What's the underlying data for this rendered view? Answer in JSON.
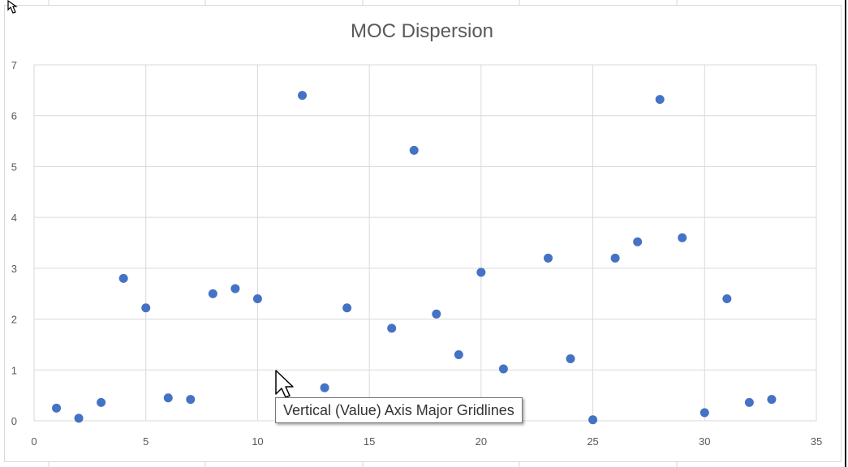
{
  "chart_data": {
    "type": "scatter",
    "title": "MOC Dispersion",
    "xlabel": "",
    "ylabel": "",
    "xlim": [
      0,
      35
    ],
    "ylim": [
      0,
      7
    ],
    "x_ticks": [
      0,
      5,
      10,
      15,
      20,
      25,
      30,
      35
    ],
    "y_ticks": [
      0,
      1,
      2,
      3,
      4,
      5,
      6,
      7
    ],
    "grid": true,
    "legend": "none",
    "marker_color": "#4472c4",
    "points": [
      {
        "x": 1,
        "y": 0.25
      },
      {
        "x": 2,
        "y": 0.05
      },
      {
        "x": 3,
        "y": 0.36
      },
      {
        "x": 4,
        "y": 2.8
      },
      {
        "x": 5,
        "y": 2.22
      },
      {
        "x": 6,
        "y": 0.45
      },
      {
        "x": 7,
        "y": 0.42
      },
      {
        "x": 8,
        "y": 2.5
      },
      {
        "x": 9,
        "y": 2.6
      },
      {
        "x": 10,
        "y": 2.4
      },
      {
        "x": 12,
        "y": 6.4
      },
      {
        "x": 13,
        "y": 0.65
      },
      {
        "x": 14,
        "y": 2.22
      },
      {
        "x": 16,
        "y": 1.82
      },
      {
        "x": 17,
        "y": 5.32
      },
      {
        "x": 18,
        "y": 2.1
      },
      {
        "x": 19,
        "y": 1.3
      },
      {
        "x": 20,
        "y": 2.92
      },
      {
        "x": 21,
        "y": 1.02
      },
      {
        "x": 23,
        "y": 3.2
      },
      {
        "x": 24,
        "y": 1.22
      },
      {
        "x": 25,
        "y": 0.02
      },
      {
        "x": 26,
        "y": 3.2
      },
      {
        "x": 27,
        "y": 3.52
      },
      {
        "x": 28,
        "y": 6.32
      },
      {
        "x": 29,
        "y": 3.6
      },
      {
        "x": 30,
        "y": 0.16
      },
      {
        "x": 31,
        "y": 2.4
      },
      {
        "x": 32,
        "y": 0.36
      },
      {
        "x": 33,
        "y": 0.42
      }
    ]
  },
  "tooltip": {
    "text": "Vertical (Value) Axis Major Gridlines"
  },
  "icons": {
    "pointer": "mouse-pointer-icon",
    "corner": "resize-cursor-icon"
  }
}
